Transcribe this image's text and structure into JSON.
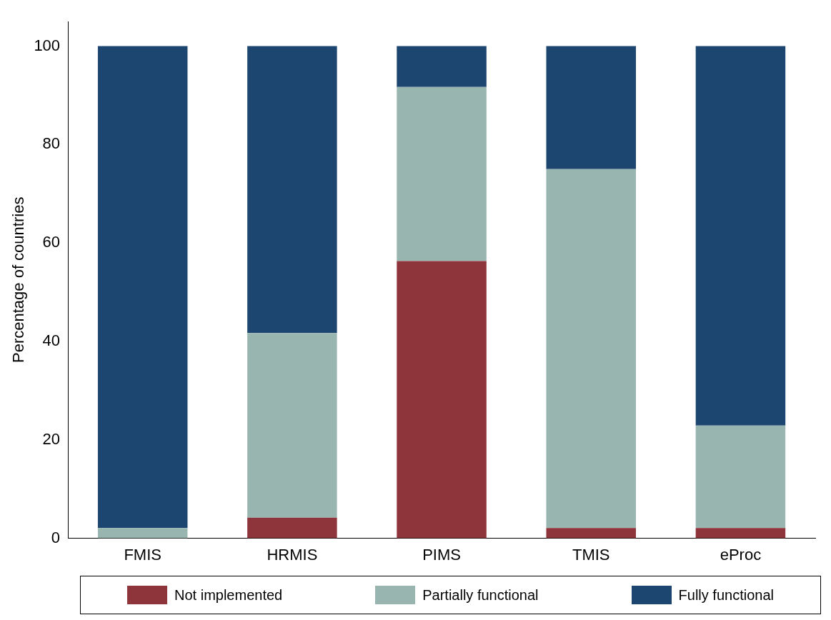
{
  "chart_data": {
    "type": "bar",
    "stacked": true,
    "ylabel": "Percentage of countries",
    "categories": [
      "FMIS",
      "HRMIS",
      "PIMS",
      "TMIS",
      "eProc"
    ],
    "series": [
      {
        "name": "Not implemented",
        "color": "#8e353b",
        "values": [
          0,
          4.2,
          56.3,
          2.1,
          2.1
        ]
      },
      {
        "name": "Partially functional",
        "color": "#98b5b0",
        "values": [
          2.1,
          37.5,
          35.4,
          72.9,
          20.8
        ]
      },
      {
        "name": "Fully functional",
        "color": "#1c4670",
        "values": [
          97.9,
          58.3,
          8.3,
          25,
          77.1
        ]
      }
    ],
    "ylim": [
      0,
      105
    ],
    "yticks": [
      0,
      20,
      40,
      60,
      80,
      100
    ],
    "grid": false,
    "legend": "bottom"
  }
}
